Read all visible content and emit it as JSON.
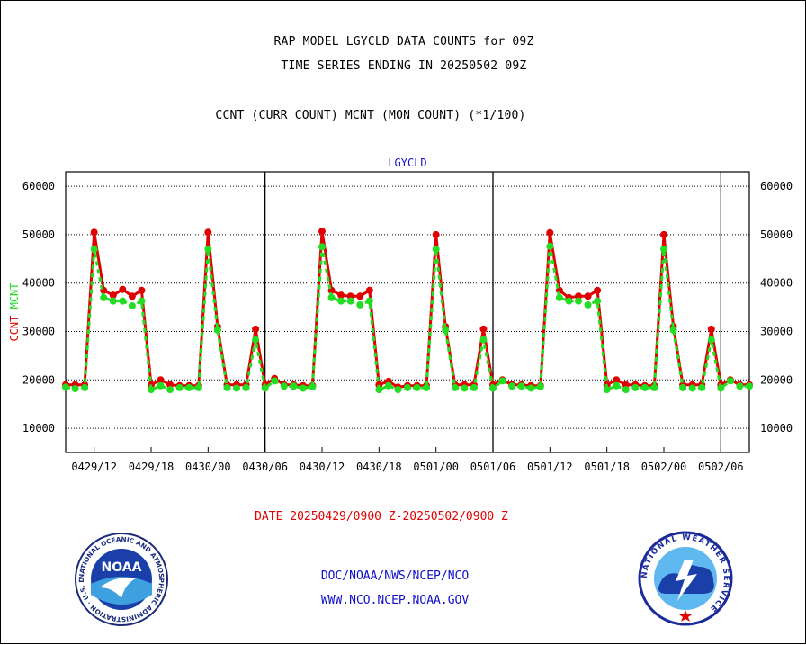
{
  "header": {
    "title_line1": "RAP MODEL LGYCLD DATA COUNTS for 09Z",
    "title_line2": "TIME SERIES ENDING IN 20250502 09Z",
    "subtitle": "CCNT (CURR COUNT) MCNT (MON COUNT) (*1/100)"
  },
  "footer": {
    "date_range": "DATE 20250429/0900 Z-20250502/0900 Z",
    "org_path": "DOC/NOAA/NWS/NCEP/NCO",
    "website": "WWW.NCO.NCEP.NOAA.GOV"
  },
  "logos": {
    "noaa_text": "NOAA",
    "noaa_ring": "NATIONAL OCEANIC AND ATMOSPHERIC ADMINISTRATION · U.S. DEPARTMENT OF COMMERCE ·",
    "nws_ring": "NATIONAL WEATHER SERVICE"
  },
  "colors": {
    "ccnt": "#e00000",
    "mcnt": "#22dd22",
    "label_blue": "#1010c8"
  },
  "chart_data": {
    "type": "line",
    "title": "LGYCLD",
    "ylabel_parts": [
      "CCNT",
      "MCNT"
    ],
    "ylim": [
      5000,
      63000
    ],
    "yticks": [
      10000,
      20000,
      30000,
      40000,
      50000,
      60000
    ],
    "ytick_labels": [
      "10000",
      "20000",
      "30000",
      "40000",
      "50000",
      "60000"
    ],
    "xlim": [
      0,
      72
    ],
    "xticks": [
      3,
      9,
      15,
      21,
      27,
      33,
      39,
      45,
      51,
      57,
      63,
      69
    ],
    "xtick_labels": [
      "0429/12",
      "0429/18",
      "0430/00",
      "0430/06",
      "0430/12",
      "0430/18",
      "0501/00",
      "0501/06",
      "0501/12",
      "0501/18",
      "0502/00",
      "0502/06"
    ],
    "x_unit": "hours after 20250429/0900 Z",
    "day_boundaries": [
      21,
      45,
      69
    ],
    "grid": "horizontal-dotted",
    "series": [
      {
        "name": "CCNT",
        "color": "#e00000",
        "x": [
          0,
          1,
          2,
          3,
          4,
          5,
          6,
          7,
          8,
          9,
          10,
          11,
          12,
          13,
          14,
          15,
          16,
          17,
          18,
          19,
          20,
          21,
          22,
          23,
          24,
          25,
          26,
          27,
          28,
          29,
          30,
          31,
          32,
          33,
          34,
          35,
          36,
          37,
          38,
          39,
          40,
          41,
          42,
          43,
          44,
          45,
          46,
          47,
          48,
          49,
          50,
          51,
          52,
          53,
          54,
          55,
          56,
          57,
          58,
          59,
          60,
          61,
          62,
          63,
          64,
          65,
          66,
          67,
          68,
          69,
          70,
          71,
          72
        ],
        "values": [
          19000,
          19000,
          19000,
          50500,
          38500,
          37500,
          38700,
          37300,
          38500,
          19000,
          20000,
          19000,
          18800,
          18800,
          18800,
          50500,
          31000,
          19000,
          19000,
          19000,
          30500,
          19000,
          20300,
          19000,
          19000,
          18800,
          18800,
          50700,
          38500,
          37500,
          37300,
          37300,
          38500,
          19000,
          19700,
          18500,
          18800,
          18800,
          18800,
          50000,
          31000,
          19000,
          19000,
          19000,
          30500,
          19000,
          20000,
          19000,
          19000,
          18800,
          18800,
          50400,
          38500,
          37000,
          37300,
          37300,
          38500,
          19000,
          20000,
          19000,
          19000,
          18800,
          18800,
          50000,
          31000,
          19000,
          19000,
          19000,
          30500,
          19000,
          20000,
          19000,
          19000
        ]
      },
      {
        "name": "MCNT",
        "color": "#22dd22",
        "x": [
          0,
          1,
          2,
          3,
          4,
          5,
          6,
          7,
          8,
          9,
          10,
          11,
          12,
          13,
          14,
          15,
          16,
          17,
          18,
          19,
          20,
          21,
          22,
          23,
          24,
          25,
          26,
          27,
          28,
          29,
          30,
          31,
          32,
          33,
          34,
          35,
          36,
          37,
          38,
          39,
          40,
          41,
          42,
          43,
          44,
          45,
          46,
          47,
          48,
          49,
          50,
          51,
          52,
          53,
          54,
          55,
          56,
          57,
          58,
          59,
          60,
          61,
          62,
          63,
          64,
          65,
          66,
          67,
          68,
          69,
          70,
          71,
          72
        ],
        "values": [
          18500,
          18200,
          18400,
          47000,
          37000,
          36300,
          36300,
          35300,
          36300,
          18000,
          18800,
          18000,
          18400,
          18400,
          18400,
          47000,
          30300,
          18400,
          18300,
          18400,
          28300,
          18300,
          19800,
          18700,
          18700,
          18300,
          18600,
          47500,
          37000,
          36300,
          36300,
          35500,
          36300,
          18000,
          18800,
          18000,
          18400,
          18400,
          18400,
          47000,
          30300,
          18400,
          18300,
          18400,
          28300,
          18300,
          19800,
          18700,
          18700,
          18300,
          18600,
          47600,
          37000,
          36300,
          36300,
          35500,
          36300,
          18000,
          18800,
          18000,
          18400,
          18400,
          18400,
          47000,
          30300,
          18400,
          18300,
          18400,
          28300,
          18300,
          19800,
          18700,
          18700
        ]
      }
    ]
  }
}
